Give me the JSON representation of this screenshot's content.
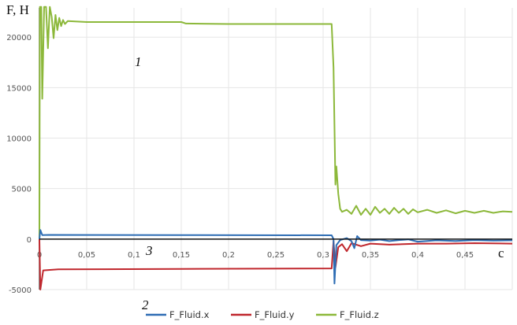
{
  "chart_data": {
    "type": "line",
    "ylabel": "F, H",
    "xlabel": "c",
    "xlim": [
      0,
      0.5
    ],
    "ylim": [
      -5000,
      22900
    ],
    "grid": true,
    "legend_placement": "bottom",
    "x_ticks": [
      "0",
      "0,05",
      "0,1",
      "0,15",
      "0,2",
      "0,25",
      "0,3",
      "0,35",
      "0,4",
      "0,45"
    ],
    "x_tick_values": [
      0,
      0.05,
      0.1,
      0.15,
      0.2,
      0.25,
      0.3,
      0.35,
      0.4,
      0.45
    ],
    "y_ticks": [
      "-5000",
      "0",
      "5000",
      "10000",
      "15000",
      "20000"
    ],
    "y_tick_values": [
      -5000,
      0,
      5000,
      10000,
      15000,
      20000
    ],
    "annotations": [
      {
        "text": "1",
        "series": "F_Fluid.z"
      },
      {
        "text": "2",
        "series": "F_Fluid.y"
      },
      {
        "text": "3",
        "series": "F_Fluid.x"
      }
    ],
    "series": [
      {
        "name": "F_Fluid.x",
        "color": "#2e6db4",
        "points": [
          [
            0,
            0
          ],
          [
            0.001,
            900
          ],
          [
            0.003,
            400
          ],
          [
            0.01,
            420
          ],
          [
            0.15,
            400
          ],
          [
            0.309,
            380
          ],
          [
            0.311,
            0
          ],
          [
            0.312,
            -4400
          ],
          [
            0.314,
            -600
          ],
          [
            0.318,
            -100
          ],
          [
            0.325,
            100
          ],
          [
            0.33,
            -200
          ],
          [
            0.333,
            -900
          ],
          [
            0.336,
            300
          ],
          [
            0.34,
            -100
          ],
          [
            0.35,
            -150
          ],
          [
            0.36,
            -50
          ],
          [
            0.37,
            -200
          ],
          [
            0.38,
            -100
          ],
          [
            0.39,
            -30
          ],
          [
            0.4,
            -250
          ],
          [
            0.42,
            -120
          ],
          [
            0.44,
            -180
          ],
          [
            0.46,
            -100
          ],
          [
            0.48,
            -150
          ],
          [
            0.5,
            -120
          ]
        ]
      },
      {
        "name": "F_Fluid.y",
        "color": "#c0272d",
        "points": [
          [
            0,
            0
          ],
          [
            0.001,
            -5000
          ],
          [
            0.004,
            -3100
          ],
          [
            0.02,
            -3000
          ],
          [
            0.15,
            -2950
          ],
          [
            0.309,
            -2900
          ],
          [
            0.311,
            -200
          ],
          [
            0.313,
            -2800
          ],
          [
            0.316,
            -800
          ],
          [
            0.32,
            -500
          ],
          [
            0.325,
            -1200
          ],
          [
            0.33,
            -400
          ],
          [
            0.34,
            -700
          ],
          [
            0.35,
            -450
          ],
          [
            0.37,
            -550
          ],
          [
            0.4,
            -450
          ],
          [
            0.43,
            -450
          ],
          [
            0.46,
            -400
          ],
          [
            0.5,
            -450
          ]
        ]
      },
      {
        "name": "F_Fluid.z",
        "color": "#8cb83a",
        "points": [
          [
            0,
            0
          ],
          [
            0.0005,
            23000
          ],
          [
            0.002,
            23000
          ],
          [
            0.003,
            13900
          ],
          [
            0.005,
            23000
          ],
          [
            0.007,
            23000
          ],
          [
            0.009,
            18900
          ],
          [
            0.011,
            23000
          ],
          [
            0.013,
            22000
          ],
          [
            0.015,
            19900
          ],
          [
            0.017,
            22200
          ],
          [
            0.019,
            20700
          ],
          [
            0.021,
            21900
          ],
          [
            0.023,
            21100
          ],
          [
            0.025,
            21700
          ],
          [
            0.027,
            21300
          ],
          [
            0.03,
            21600
          ],
          [
            0.05,
            21500
          ],
          [
            0.15,
            21500
          ],
          [
            0.155,
            21350
          ],
          [
            0.2,
            21300
          ],
          [
            0.309,
            21300
          ],
          [
            0.311,
            17000
          ],
          [
            0.313,
            5400
          ],
          [
            0.314,
            7200
          ],
          [
            0.316,
            4500
          ],
          [
            0.318,
            3000
          ],
          [
            0.32,
            2700
          ],
          [
            0.325,
            2900
          ],
          [
            0.33,
            2500
          ],
          [
            0.335,
            3300
          ],
          [
            0.34,
            2400
          ],
          [
            0.345,
            3000
          ],
          [
            0.35,
            2400
          ],
          [
            0.355,
            3200
          ],
          [
            0.36,
            2600
          ],
          [
            0.365,
            3000
          ],
          [
            0.37,
            2500
          ],
          [
            0.375,
            3100
          ],
          [
            0.38,
            2600
          ],
          [
            0.385,
            3000
          ],
          [
            0.39,
            2500
          ],
          [
            0.395,
            2950
          ],
          [
            0.4,
            2650
          ],
          [
            0.41,
            2900
          ],
          [
            0.42,
            2600
          ],
          [
            0.43,
            2850
          ],
          [
            0.44,
            2550
          ],
          [
            0.45,
            2800
          ],
          [
            0.46,
            2600
          ],
          [
            0.47,
            2800
          ],
          [
            0.48,
            2600
          ],
          [
            0.49,
            2750
          ],
          [
            0.5,
            2700
          ]
        ]
      }
    ]
  }
}
